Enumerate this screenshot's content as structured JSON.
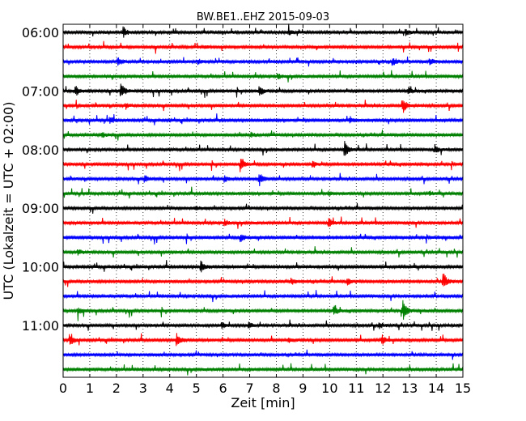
{
  "chart_data": {
    "type": "line",
    "title": "BW.BE1..EHZ 2015-09-03",
    "xlabel": "Zeit  [min]",
    "ylabel": "UTC (Lokalzeit = UTC + 02:00)",
    "xlim": [
      0,
      15
    ],
    "x_ticks": [
      0,
      1,
      2,
      3,
      4,
      5,
      6,
      7,
      8,
      9,
      10,
      11,
      12,
      13,
      14,
      15
    ],
    "x_tick_labels": [
      "0",
      "1",
      "2",
      "3",
      "4",
      "5",
      "6",
      "7",
      "8",
      "9",
      "10",
      "11",
      "12",
      "13",
      "14",
      "15"
    ],
    "y_tick_labels": [
      "06:00",
      "07:00",
      "08:00",
      "09:00",
      "10:00",
      "11:00"
    ],
    "grid": "vertical dotted at each minute",
    "trace_colors": [
      "#000000",
      "#ff0000",
      "#0000ff",
      "#008000"
    ],
    "traces": [
      {
        "time": "06:00",
        "color": "#000000",
        "events": [
          {
            "x": 2.3,
            "amp": 0.55
          },
          {
            "x": 8.5,
            "amp": 0.3
          },
          {
            "x": 12.9,
            "amp": 0.35
          }
        ]
      },
      {
        "time": "06:15",
        "color": "#ff0000",
        "events": [
          {
            "x": 5.3,
            "amp": 0.15
          }
        ]
      },
      {
        "time": "06:30",
        "color": "#0000ff",
        "events": [
          {
            "x": 2.1,
            "amp": 0.45
          },
          {
            "x": 5.1,
            "amp": 0.3
          },
          {
            "x": 12.4,
            "amp": 0.4
          },
          {
            "x": 13.8,
            "amp": 0.4
          }
        ]
      },
      {
        "time": "06:45",
        "color": "#008000",
        "events": [
          {
            "x": 8.1,
            "amp": 0.3
          }
        ]
      },
      {
        "time": "07:00",
        "color": "#000000",
        "events": [
          {
            "x": 0.5,
            "amp": 0.55
          },
          {
            "x": 2.2,
            "amp": 0.95
          },
          {
            "x": 7.4,
            "amp": 0.6
          },
          {
            "x": 13.0,
            "amp": 0.35
          }
        ]
      },
      {
        "time": "07:15",
        "color": "#ff0000",
        "events": [
          {
            "x": 2.4,
            "amp": 0.3
          },
          {
            "x": 12.8,
            "amp": 0.75
          }
        ]
      },
      {
        "time": "07:30",
        "color": "#0000ff",
        "events": [
          {
            "x": 1.8,
            "amp": 0.35
          },
          {
            "x": 10.8,
            "amp": 0.35
          }
        ]
      },
      {
        "time": "07:45",
        "color": "#008000",
        "events": [
          {
            "x": 1.5,
            "amp": 0.35
          },
          {
            "x": 7.1,
            "amp": 0.3
          }
        ]
      },
      {
        "time": "08:00",
        "color": "#000000",
        "events": [
          {
            "x": 10.6,
            "amp": 0.85
          },
          {
            "x": 14.0,
            "amp": 0.45
          }
        ]
      },
      {
        "time": "08:15",
        "color": "#ff0000",
        "events": [
          {
            "x": 6.7,
            "amp": 0.9
          },
          {
            "x": 9.4,
            "amp": 0.4
          }
        ]
      },
      {
        "time": "08:30",
        "color": "#0000ff",
        "events": [
          {
            "x": 3.1,
            "amp": 0.45
          },
          {
            "x": 6.1,
            "amp": 0.35
          },
          {
            "x": 7.4,
            "amp": 0.7
          }
        ]
      },
      {
        "time": "08:45",
        "color": "#008000",
        "events": [
          {
            "x": 10.0,
            "amp": 0.2
          },
          {
            "x": 13.8,
            "amp": 0.2
          }
        ]
      },
      {
        "time": "09:00",
        "color": "#000000",
        "events": [
          {
            "x": 5.0,
            "amp": 0.2
          }
        ]
      },
      {
        "time": "09:15",
        "color": "#ff0000",
        "events": [
          {
            "x": 6.1,
            "amp": 0.35
          },
          {
            "x": 10.0,
            "amp": 0.55
          }
        ]
      },
      {
        "time": "09:30",
        "color": "#0000ff",
        "events": [
          {
            "x": 6.7,
            "amp": 0.45
          }
        ]
      },
      {
        "time": "09:45",
        "color": "#008000",
        "events": [
          {
            "x": 0.6,
            "amp": 0.35
          }
        ]
      },
      {
        "time": "10:00",
        "color": "#000000",
        "events": [
          {
            "x": 5.2,
            "amp": 0.75
          }
        ]
      },
      {
        "time": "10:15",
        "color": "#ff0000",
        "events": [
          {
            "x": 8.6,
            "amp": 0.35
          },
          {
            "x": 10.7,
            "amp": 0.35
          },
          {
            "x": 14.3,
            "amp": 1.0
          }
        ]
      },
      {
        "time": "10:30",
        "color": "#0000ff",
        "events": []
      },
      {
        "time": "10:45",
        "color": "#008000",
        "events": [
          {
            "x": 0.6,
            "amp": 0.45
          },
          {
            "x": 10.2,
            "amp": 0.5
          },
          {
            "x": 12.8,
            "amp": 1.0
          }
        ]
      },
      {
        "time": "11:00",
        "color": "#000000",
        "events": [
          {
            "x": 6.0,
            "amp": 0.35
          },
          {
            "x": 7.0,
            "amp": 0.35
          },
          {
            "x": 11.9,
            "amp": 0.3
          }
        ]
      },
      {
        "time": "11:15",
        "color": "#ff0000",
        "events": [
          {
            "x": 0.3,
            "amp": 0.6
          },
          {
            "x": 4.3,
            "amp": 0.75
          },
          {
            "x": 8.5,
            "amp": 0.3
          },
          {
            "x": 12.0,
            "amp": 0.55
          }
        ]
      },
      {
        "time": "11:30",
        "color": "#0000ff",
        "events": []
      },
      {
        "time": "11:45",
        "color": "#008000",
        "events": []
      }
    ]
  }
}
